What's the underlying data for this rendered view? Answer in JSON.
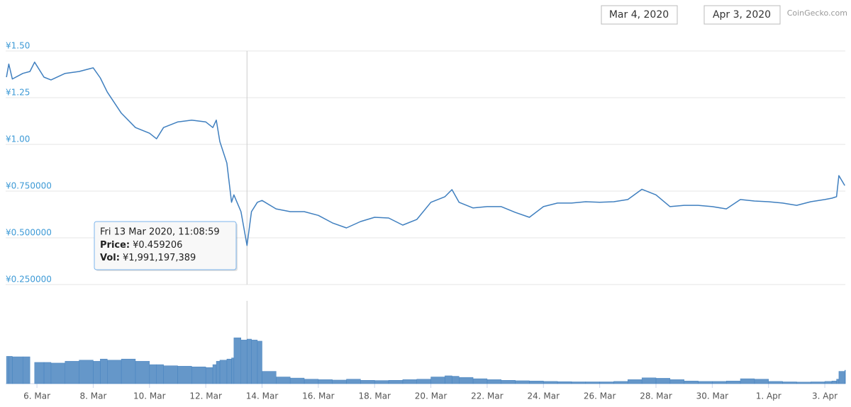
{
  "header": {
    "date_range": [
      "Mar 4, 2020",
      "Apr 3, 2020"
    ],
    "source": "CoinGecko.com"
  },
  "chart_data": {
    "type": "line",
    "x": [
      "2020-03-04T22:00",
      "2020-03-05T00:00",
      "2020-03-05T03:00",
      "2020-03-05T12:00",
      "2020-03-05T18:00",
      "2020-03-05T22:00",
      "2020-03-06T06:00",
      "2020-03-06T12:00",
      "2020-03-07T00:00",
      "2020-03-07T12:00",
      "2020-03-08T00:00",
      "2020-03-08T06:00",
      "2020-03-08T12:00",
      "2020-03-09T00:00",
      "2020-03-09T12:00",
      "2020-03-10T00:00",
      "2020-03-10T06:00",
      "2020-03-10T12:00",
      "2020-03-11T00:00",
      "2020-03-11T12:00",
      "2020-03-12T00:00",
      "2020-03-12T06:00",
      "2020-03-12T09:00",
      "2020-03-12T12:00",
      "2020-03-12T18:00",
      "2020-03-12T22:00",
      "2020-03-13T00:00",
      "2020-03-13T06:00",
      "2020-03-13T11:08:59",
      "2020-03-13T15:00",
      "2020-03-13T20:00",
      "2020-03-14T00:00",
      "2020-03-14T12:00",
      "2020-03-15T00:00",
      "2020-03-15T12:00",
      "2020-03-16T00:00",
      "2020-03-16T12:00",
      "2020-03-17T00:00",
      "2020-03-17T12:00",
      "2020-03-18T00:00",
      "2020-03-18T12:00",
      "2020-03-19T00:00",
      "2020-03-19T12:00",
      "2020-03-20T00:00",
      "2020-03-20T12:00",
      "2020-03-20T18:00",
      "2020-03-21T00:00",
      "2020-03-21T12:00",
      "2020-03-22T00:00",
      "2020-03-22T12:00",
      "2020-03-23T00:00",
      "2020-03-23T12:00",
      "2020-03-24T00:00",
      "2020-03-24T12:00",
      "2020-03-25T00:00",
      "2020-03-25T12:00",
      "2020-03-26T00:00",
      "2020-03-26T12:00",
      "2020-03-27T00:00",
      "2020-03-27T12:00",
      "2020-03-28T00:00",
      "2020-03-28T12:00",
      "2020-03-29T00:00",
      "2020-03-29T12:00",
      "2020-03-30T00:00",
      "2020-03-30T12:00",
      "2020-03-31T00:00",
      "2020-03-31T12:00",
      "2020-04-01T00:00",
      "2020-04-01T12:00",
      "2020-04-02T00:00",
      "2020-04-02T12:00",
      "2020-04-03T00:00",
      "2020-04-03T06:00",
      "2020-04-03T10:00",
      "2020-04-03T12:00",
      "2020-04-03T17:00"
    ],
    "series": [
      {
        "name": "Price",
        "color": "#3f7fbf",
        "values": [
          1.36,
          1.43,
          1.35,
          1.38,
          1.39,
          1.44,
          1.36,
          1.345,
          1.38,
          1.39,
          1.41,
          1.356,
          1.28,
          1.167,
          1.09,
          1.06,
          1.03,
          1.09,
          1.12,
          1.13,
          1.12,
          1.09,
          1.13,
          1.015,
          0.9,
          0.69,
          0.73,
          0.64,
          0.459206,
          0.64,
          0.69,
          0.7,
          0.655,
          0.64,
          0.64,
          0.62,
          0.58,
          0.553,
          0.587,
          0.61,
          0.606,
          0.568,
          0.598,
          0.69,
          0.72,
          0.758,
          0.69,
          0.66,
          0.667,
          0.667,
          0.636,
          0.61,
          0.667,
          0.686,
          0.686,
          0.693,
          0.69,
          0.693,
          0.705,
          0.76,
          0.73,
          0.667,
          0.674,
          0.674,
          0.667,
          0.655,
          0.705,
          0.697,
          0.693,
          0.686,
          0.674,
          0.693,
          0.705,
          0.712,
          0.72,
          0.833,
          0.78
        ]
      },
      {
        "name": "Vol",
        "color": "#4a85c0",
        "axis": "y2",
        "values": [
          1220000000,
          1220000000,
          1200000000,
          1200000000,
          null,
          950000000,
          950000000,
          920000000,
          1000000000,
          1050000000,
          1000000000,
          1100000000,
          1050000000,
          1100000000,
          1000000000,
          850000000,
          850000000,
          800000000,
          780000000,
          750000000,
          720000000,
          850000000,
          1000000000,
          1050000000,
          1100000000,
          1150000000,
          2050000000,
          1950000000,
          1991197389,
          1950000000,
          1900000000,
          550000000,
          300000000,
          250000000,
          200000000,
          180000000,
          160000000,
          200000000,
          150000000,
          140000000,
          150000000,
          180000000,
          200000000,
          300000000,
          350000000,
          330000000,
          280000000,
          220000000,
          180000000,
          150000000,
          130000000,
          120000000,
          100000000,
          90000000,
          80000000,
          80000000,
          80000000,
          100000000,
          180000000,
          260000000,
          240000000,
          180000000,
          120000000,
          100000000,
          100000000,
          120000000,
          220000000,
          200000000,
          100000000,
          80000000,
          70000000,
          80000000,
          100000000,
          120000000,
          200000000,
          550000000,
          600000000
        ]
      }
    ],
    "xlim": [
      "2020-03-04T21:20",
      "2020-04-03T17:30"
    ],
    "xticks": [
      {
        "value": "2020-03-06",
        "label": "6. Mar"
      },
      {
        "value": "2020-03-08",
        "label": "8. Mar"
      },
      {
        "value": "2020-03-10",
        "label": "10. Mar"
      },
      {
        "value": "2020-03-12",
        "label": "12. Mar"
      },
      {
        "value": "2020-03-14",
        "label": "14. Mar"
      },
      {
        "value": "2020-03-16",
        "label": "16. Mar"
      },
      {
        "value": "2020-03-18",
        "label": "18. Mar"
      },
      {
        "value": "2020-03-20",
        "label": "20. Mar"
      },
      {
        "value": "2020-03-22",
        "label": "22. Mar"
      },
      {
        "value": "2020-03-24",
        "label": "24. Mar"
      },
      {
        "value": "2020-03-26",
        "label": "26. Mar"
      },
      {
        "value": "2020-03-28",
        "label": "28. Mar"
      },
      {
        "value": "2020-03-30",
        "label": "30. Mar"
      },
      {
        "value": "2020-04-01",
        "label": "1. Apr"
      },
      {
        "value": "2020-04-03",
        "label": "3. Apr"
      }
    ],
    "ylim": [
      0.25,
      1.5
    ],
    "yticks": [
      {
        "value": 1.5,
        "label": "¥1.50"
      },
      {
        "value": 1.25,
        "label": "¥1.25"
      },
      {
        "value": 1.0,
        "label": "¥1.00"
      },
      {
        "value": 0.75,
        "label": "¥0.750000"
      },
      {
        "value": 0.5,
        "label": "¥0.500000"
      },
      {
        "value": 0.25,
        "label": "¥0.250000"
      }
    ],
    "y2lim": [
      0,
      3700000000
    ],
    "grid": true,
    "tooltip": {
      "x": "2020-03-13T11:08:59",
      "title": "Fri 13 Mar 2020, 11:08:59",
      "lines": [
        {
          "label": "Price:",
          "value": "¥0.459206"
        },
        {
          "label": "Vol:",
          "value": "¥1,991,197,389"
        }
      ]
    }
  }
}
